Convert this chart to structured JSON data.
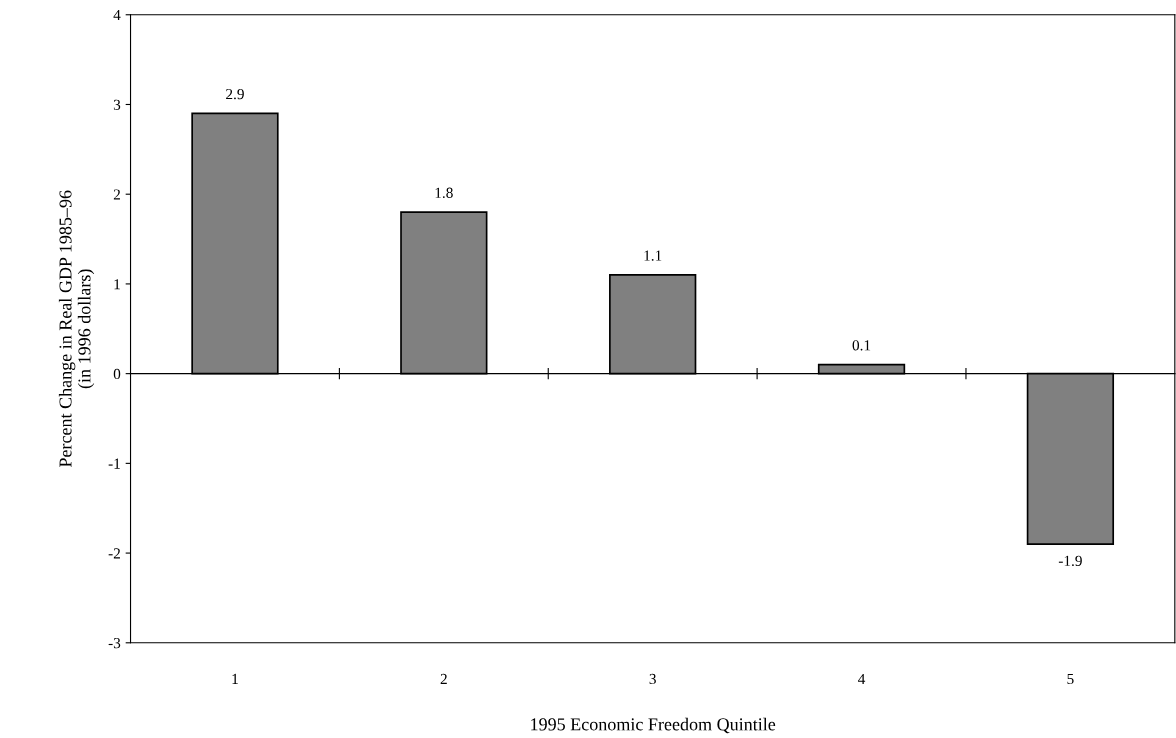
{
  "chart_data": {
    "type": "bar",
    "xlabel": "1995 Economic Freedom Quintile",
    "ylabel": "Percent Change in Real GDP 1985–96\n(in 1996 dollars)",
    "categories": [
      "1",
      "2",
      "3",
      "4",
      "5"
    ],
    "values": [
      2.9,
      1.8,
      1.1,
      0.1,
      -1.9
    ],
    "color": "#808080",
    "ylim": [
      -3,
      4
    ],
    "yticks": [
      -3,
      -2,
      -1,
      0,
      1,
      2,
      3,
      4
    ],
    "data_labels": true
  }
}
